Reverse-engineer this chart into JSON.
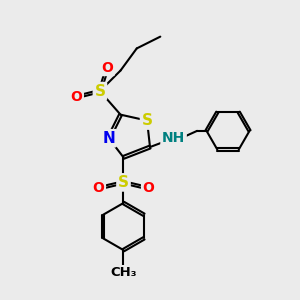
{
  "bg_color": "#ebebeb",
  "bond_color": "#000000",
  "bond_width": 1.5,
  "atom_colors": {
    "S": "#cccc00",
    "N": "#0000ee",
    "O": "#ff0000",
    "C": "#000000",
    "H": "#008080"
  },
  "font_size": 10,
  "figsize": [
    3.0,
    3.0
  ],
  "dpi": 100
}
